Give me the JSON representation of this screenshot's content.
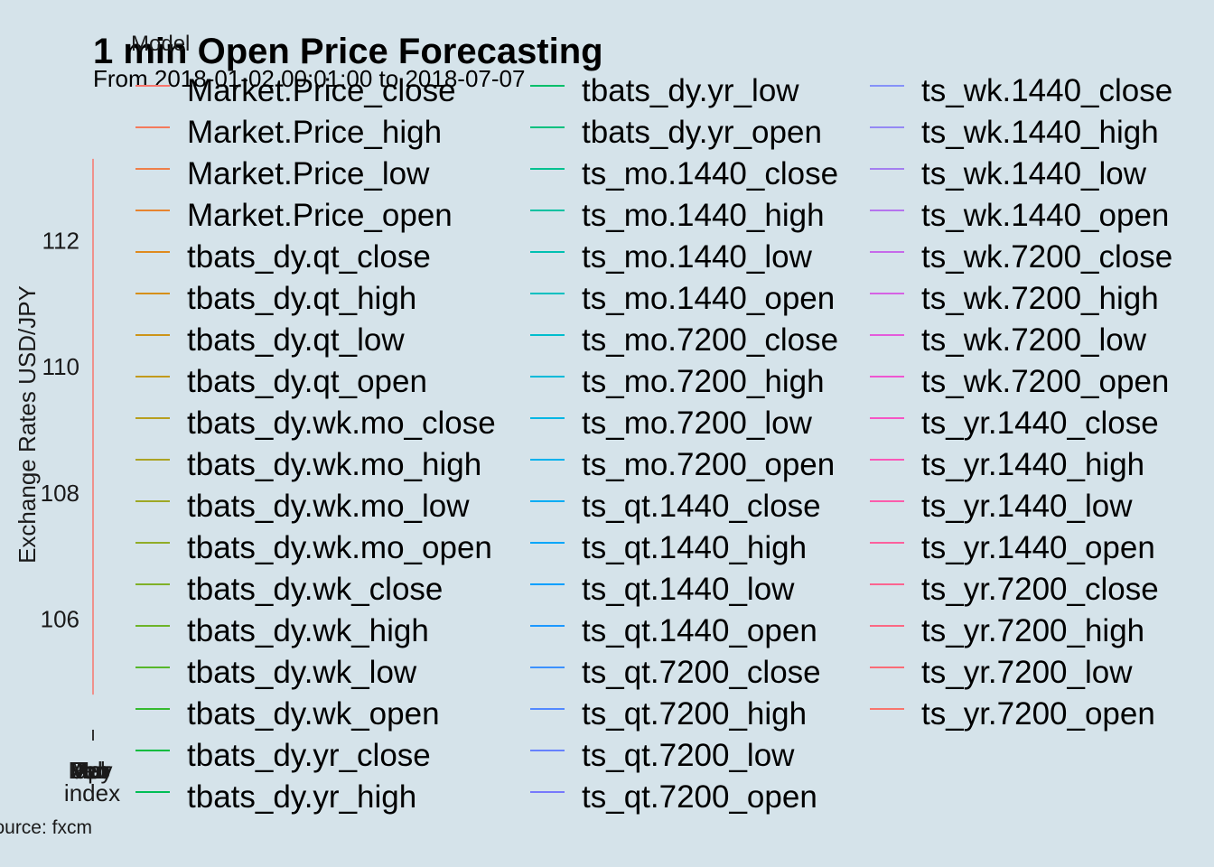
{
  "chart_data": {
    "type": "line",
    "title": "1 min Open Price Forecasting",
    "subtitle": "From 2018-01-02 00:01:00 to 2018-07-07",
    "xlabel": "index",
    "ylabel": "Exchange Rates USD/JPY",
    "caption": "Source: fxcm",
    "x_tick_labels": [
      "Jan",
      "Feb",
      "Mar",
      "Apr",
      "May",
      "Jun",
      "Jul"
    ],
    "y_ticks": [
      106,
      108,
      110,
      112
    ],
    "ylim": [
      104.5,
      113.7
    ],
    "legend_title": "Model",
    "legend_position": "right",
    "grid": false,
    "series": [
      {
        "name": "Market.Price_close",
        "color": "#F8766D"
      },
      {
        "name": "Market.Price_high",
        "color": "#F47A5C"
      },
      {
        "name": "Market.Price_low",
        "color": "#EE7F4A"
      },
      {
        "name": "Market.Price_open",
        "color": "#E7842F"
      },
      {
        "name": "tbats_dy.qt_close",
        "color": "#DF8A1E"
      },
      {
        "name": "tbats_dy.qt_high",
        "color": "#D68F18"
      },
      {
        "name": "tbats_dy.qt_low",
        "color": "#CC9419"
      },
      {
        "name": "tbats_dy.qt_open",
        "color": "#C29A1C"
      },
      {
        "name": "tbats_dy.wk.mo_close",
        "color": "#B79F1F"
      },
      {
        "name": "tbats_dy.wk.mo_high",
        "color": "#ABA323"
      },
      {
        "name": "tbats_dy.wk.mo_low",
        "color": "#9EA825"
      },
      {
        "name": "tbats_dy.wk.mo_open",
        "color": "#90AC27"
      },
      {
        "name": "tbats_dy.wk_close",
        "color": "#80B028"
      },
      {
        "name": "tbats_dy.wk_high",
        "color": "#6DB428"
      },
      {
        "name": "tbats_dy.wk_low",
        "color": "#56B72A"
      },
      {
        "name": "tbats_dy.wk_open",
        "color": "#35BA2F"
      },
      {
        "name": "tbats_dy.yr_close",
        "color": "#00BC3E"
      },
      {
        "name": "tbats_dy.yr_high",
        "color": "#00BE55"
      },
      {
        "name": "tbats_dy.yr_low",
        "color": "#00BF6A"
      },
      {
        "name": "tbats_dy.yr_open",
        "color": "#00C07E"
      },
      {
        "name": "ts_mo.1440_close",
        "color": "#00C190"
      },
      {
        "name": "ts_mo.1440_high",
        "color": "#00C1A1"
      },
      {
        "name": "ts_mo.1440_low",
        "color": "#00C0B1"
      },
      {
        "name": "ts_mo.1440_open",
        "color": "#00BFC0"
      },
      {
        "name": "ts_mo.7200_close",
        "color": "#00BDCD"
      },
      {
        "name": "ts_mo.7200_high",
        "color": "#00BAD9"
      },
      {
        "name": "ts_mo.7200_low",
        "color": "#00B6E4"
      },
      {
        "name": "ts_mo.7200_open",
        "color": "#00B1ED"
      },
      {
        "name": "ts_qt.1440_close",
        "color": "#00ACF4"
      },
      {
        "name": "ts_qt.1440_high",
        "color": "#00A6FA"
      },
      {
        "name": "ts_qt.1440_low",
        "color": "#009FFE"
      },
      {
        "name": "ts_qt.1440_open",
        "color": "#1D98FF"
      },
      {
        "name": "ts_qt.7200_close",
        "color": "#3C91FF"
      },
      {
        "name": "ts_qt.7200_high",
        "color": "#5389FF"
      },
      {
        "name": "ts_qt.7200_low",
        "color": "#6681FF"
      },
      {
        "name": "ts_qt.7200_open",
        "color": "#7779FC"
      },
      {
        "name": "ts_wk.1440_close",
        "color": "#8692F8"
      },
      {
        "name": "ts_wk.1440_high",
        "color": "#9489F4"
      },
      {
        "name": "ts_wk.1440_low",
        "color": "#A47FF0"
      },
      {
        "name": "ts_wk.1440_open",
        "color": "#B574EE"
      },
      {
        "name": "ts_wk.7200_close",
        "color": "#C66AEA"
      },
      {
        "name": "ts_wk.7200_high",
        "color": "#D662E4"
      },
      {
        "name": "ts_wk.7200_low",
        "color": "#E45BDB"
      },
      {
        "name": "ts_wk.7200_open",
        "color": "#EE57D1"
      },
      {
        "name": "ts_yr.1440_close",
        "color": "#F556C5"
      },
      {
        "name": "ts_yr.1440_high",
        "color": "#F958B8"
      },
      {
        "name": "ts_yr.1440_low",
        "color": "#FB5CAB"
      },
      {
        "name": "ts_yr.1440_open",
        "color": "#FC609D"
      },
      {
        "name": "ts_yr.7200_close",
        "color": "#FC6490"
      },
      {
        "name": "ts_yr.7200_high",
        "color": "#FB6883"
      },
      {
        "name": "ts_yr.7200_low",
        "color": "#FA6C77"
      },
      {
        "name": "ts_yr.7200_open",
        "color": "#F8766D"
      }
    ],
    "visible_trace": {
      "y_range": [
        104.8,
        113.3
      ],
      "color": "#F8766D"
    }
  }
}
